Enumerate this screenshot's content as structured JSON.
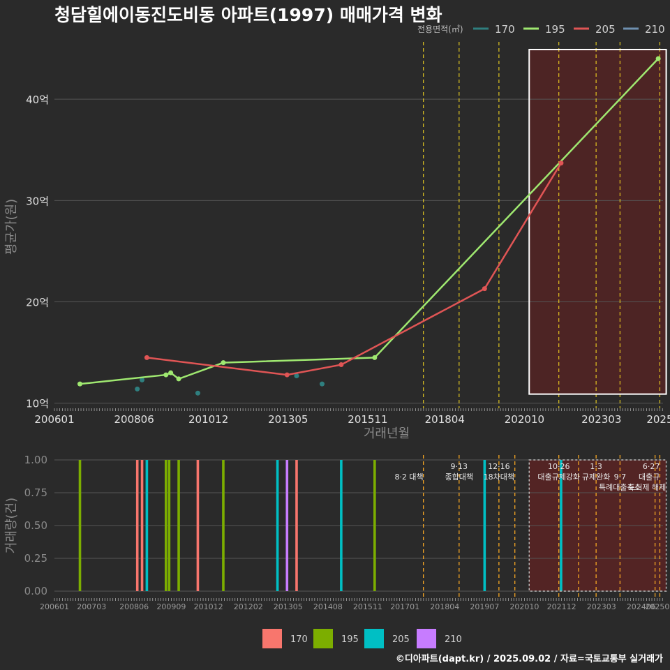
{
  "title": "청담힐에이동진도비동 아파트(1997) 매매가격 변화",
  "credit": "©디아파트(dapt.kr) / 2025.09.02 / 자료=국토교통부 실거래가",
  "colors": {
    "background": "#2a2a2a",
    "s170": "#f8766d",
    "s195": "#7cae00",
    "s205": "#00bfc4",
    "s210": "#c77cff",
    "line170": "#2f7f7f",
    "line195": "#9fe870",
    "line205": "#e05555",
    "line210": "#6f90b0",
    "policy": "#ffe020",
    "policy_bottom": "#f5a623",
    "highlight": "#5a2323"
  },
  "chart_data": [
    {
      "type": "line",
      "name": "price",
      "xlabel": "거래년월",
      "ylabel": "평균가(원)",
      "ylim": [
        9.5,
        46
      ],
      "xlim": [
        2006.0,
        2025.1
      ],
      "yticks": [
        10,
        20,
        30,
        40
      ],
      "ytick_labels": [
        "10억",
        "20억",
        "30억",
        "40억"
      ],
      "xticks": [
        2006.0,
        2008.5,
        2010.833,
        2013.333,
        2015.833,
        2018.25,
        2020.75,
        2023.167,
        2025.0
      ],
      "xtick_labels": [
        "200601",
        "200806",
        "201012",
        "201305",
        "201511",
        "201804",
        "202010",
        "202303",
        "2025"
      ],
      "legend_title": "전용면적(㎡)",
      "legend": [
        "170",
        "195",
        "205",
        "210"
      ],
      "series": [
        {
          "name": "170",
          "points": [
            [
              2008.75,
              12.3
            ],
            [
              2008.6,
              11.4
            ],
            [
              2010.5,
              11.0
            ],
            [
              2013.6,
              12.7
            ],
            [
              2014.4,
              11.9
            ]
          ],
          "line": false
        },
        {
          "name": "195",
          "points": [
            [
              2006.8,
              11.9
            ],
            [
              2009.5,
              12.8
            ],
            [
              2009.65,
              13.0
            ],
            [
              2009.9,
              12.4
            ],
            [
              2011.3,
              14.0
            ],
            [
              2016.05,
              14.5
            ],
            [
              2024.95,
              44.0
            ]
          ],
          "line": true
        },
        {
          "name": "205",
          "points": [
            [
              2008.9,
              14.5
            ],
            [
              2013.3,
              12.8
            ],
            [
              2015.0,
              13.8
            ],
            [
              2019.5,
              21.3
            ],
            [
              2021.9,
              33.7
            ]
          ],
          "line": true
        }
      ],
      "policy_dates": [
        2017.58,
        2018.7,
        2019.95,
        2021.83,
        2023.0,
        2023.75,
        2025.0
      ],
      "highlight_range": [
        2020.9,
        2025.2
      ]
    },
    {
      "type": "bar",
      "name": "volume",
      "xlabel": "",
      "ylabel": "거래량(건)",
      "ylim": [
        0,
        1
      ],
      "yticks": [
        0,
        0.25,
        0.5,
        0.75,
        1.0
      ],
      "ytick_labels": [
        "0.00",
        "0.25",
        "0.50",
        "0.75",
        "1.00"
      ],
      "xticks": [
        2006.0,
        2007.167,
        2008.5,
        2009.667,
        2010.833,
        2012.083,
        2013.333,
        2014.583,
        2015.833,
        2017.0,
        2018.25,
        2019.5,
        2020.75,
        2021.917,
        2023.167,
        2024.417,
        2025.0
      ],
      "xtick_labels": [
        "200601",
        "200703",
        "200806",
        "200909",
        "201012",
        "201202",
        "201305",
        "201408",
        "201511",
        "201701",
        "201804",
        "201907",
        "202010",
        "202112",
        "202303",
        "202406",
        "202509"
      ],
      "legend": [
        "170",
        "195",
        "205",
        "210"
      ],
      "bars": [
        {
          "x": 2006.8,
          "series": "195",
          "value": 1
        },
        {
          "x": 2008.6,
          "series": "170",
          "value": 1
        },
        {
          "x": 2008.75,
          "series": "170",
          "value": 1
        },
        {
          "x": 2008.9,
          "series": "205",
          "value": 1
        },
        {
          "x": 2009.5,
          "series": "195",
          "value": 1
        },
        {
          "x": 2009.6,
          "series": "195",
          "value": 1
        },
        {
          "x": 2009.9,
          "series": "195",
          "value": 1
        },
        {
          "x": 2010.5,
          "series": "170",
          "value": 1
        },
        {
          "x": 2011.3,
          "series": "195",
          "value": 1
        },
        {
          "x": 2013.0,
          "series": "205",
          "value": 1
        },
        {
          "x": 2013.3,
          "series": "210",
          "value": 1
        },
        {
          "x": 2013.6,
          "series": "170",
          "value": 1
        },
        {
          "x": 2015.0,
          "series": "205",
          "value": 1
        },
        {
          "x": 2016.05,
          "series": "195",
          "value": 1
        },
        {
          "x": 2019.5,
          "series": "205",
          "value": 1
        },
        {
          "x": 2021.9,
          "series": "205",
          "value": 1
        }
      ],
      "policy_dates": [
        2017.58,
        2018.7,
        2019.95,
        2020.45,
        2021.83,
        2022.45,
        2023.0,
        2023.75,
        2024.85,
        2025.0
      ],
      "policy_labels": [
        {
          "x": 2017.58,
          "lines": [
            "8·2 대책"
          ],
          "anchor": "end",
          "row": 0.5
        },
        {
          "x": 2018.7,
          "lines": [
            "9·13",
            "종합대책"
          ],
          "anchor": "middle",
          "row": 0
        },
        {
          "x": 2019.95,
          "lines": [
            "12·16",
            "18차대책"
          ],
          "anchor": "middle",
          "row": 0
        },
        {
          "x": 2021.83,
          "lines": [
            "10·26",
            "대출규제강화"
          ],
          "anchor": "middle",
          "row": 0
        },
        {
          "x": 2023.0,
          "lines": [
            "1·3",
            "규제완화"
          ],
          "anchor": "middle",
          "row": 0
        },
        {
          "x": 2023.75,
          "lines": [
            "",
            "9·7",
            "특례대출축소"
          ],
          "anchor": "middle",
          "row": 0
        },
        {
          "x": 2024.6,
          "lines": [
            "",
            "",
            "토허제 해제"
          ],
          "anchor": "middle",
          "row": 0
        },
        {
          "x": 2025.0,
          "lines": [
            "6·27",
            "대출규"
          ],
          "anchor": "end",
          "row": 0
        }
      ],
      "highlight_range": [
        2020.9,
        2025.2
      ]
    }
  ]
}
